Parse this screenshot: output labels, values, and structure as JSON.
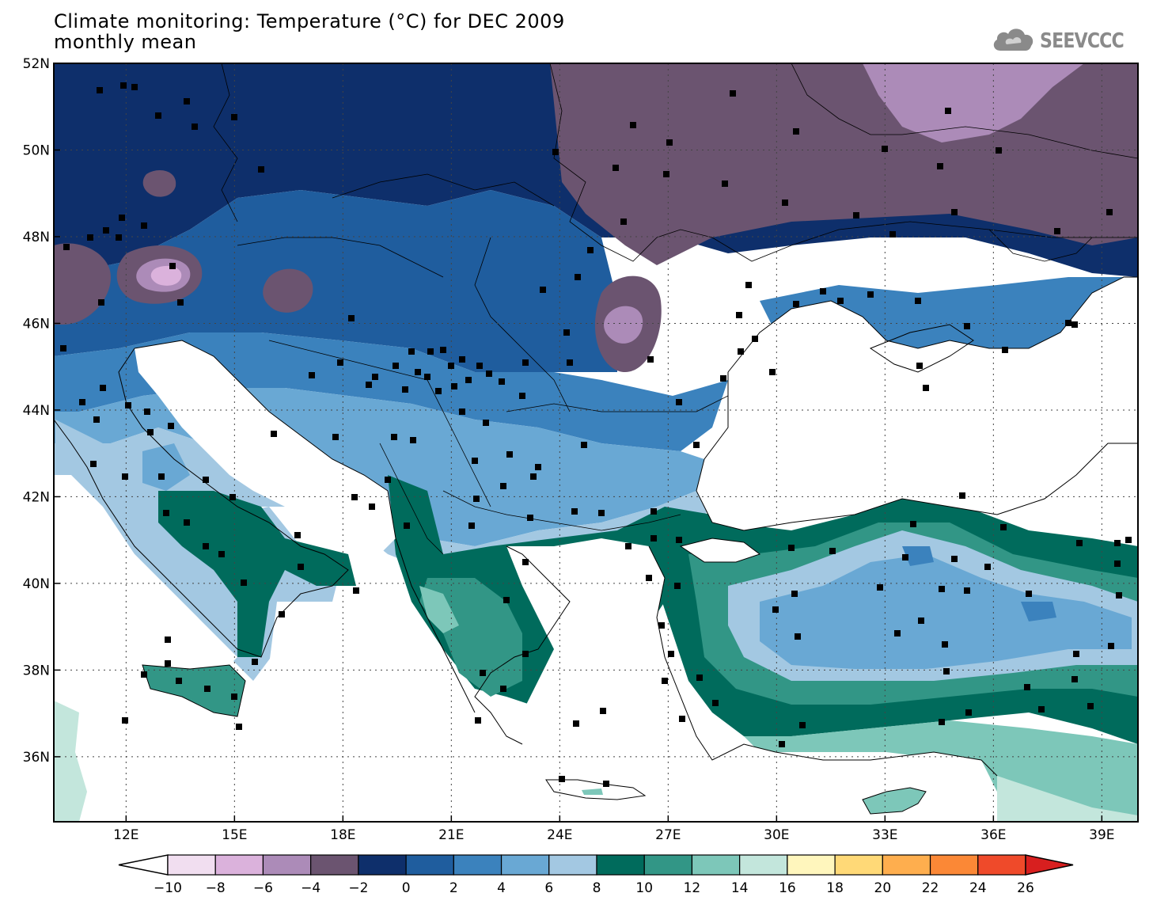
{
  "header": {
    "title_line1": "Climate monitoring: Temperature (°C) for DEC 2009",
    "title_line2": "monthly mean"
  },
  "logo": {
    "icon": "cloud-icon",
    "text": "SEEVCCC",
    "color": "#8a8a8a"
  },
  "map": {
    "lon_range": [
      10,
      40
    ],
    "lat_range": [
      34.5,
      52
    ],
    "lat_ticks": [
      "52N",
      "50N",
      "48N",
      "46N",
      "44N",
      "42N",
      "40N",
      "38N",
      "36N"
    ],
    "lon_ticks": [
      "12E",
      "15E",
      "18E",
      "21E",
      "24E",
      "27E",
      "30E",
      "33E",
      "36E",
      "39E"
    ],
    "gridlines": "dotted",
    "land_color_no_data": "#ffffff",
    "sea_color": "#ffffff"
  },
  "legend": {
    "labels": [
      "−10",
      "−8",
      "−6",
      "−4",
      "−2",
      "0",
      "2",
      "4",
      "6",
      "8",
      "10",
      "12",
      "14",
      "16",
      "18",
      "20",
      "22",
      "24",
      "26"
    ],
    "colors": [
      "#f1def0",
      "#dbb2dc",
      "#ac8bb8",
      "#6b5470",
      "#0e2f6b",
      "#1f5d9e",
      "#3b82bd",
      "#69a8d4",
      "#a3c8e2",
      "#006b5c",
      "#329686",
      "#7dc7b9",
      "#c3e6dc",
      "#fff6bd",
      "#ffd977",
      "#feae4e",
      "#fb8836",
      "#ef4a2a"
    ],
    "low_end_color": "#ffffff",
    "high_end_color": "#d81f1f"
  }
}
